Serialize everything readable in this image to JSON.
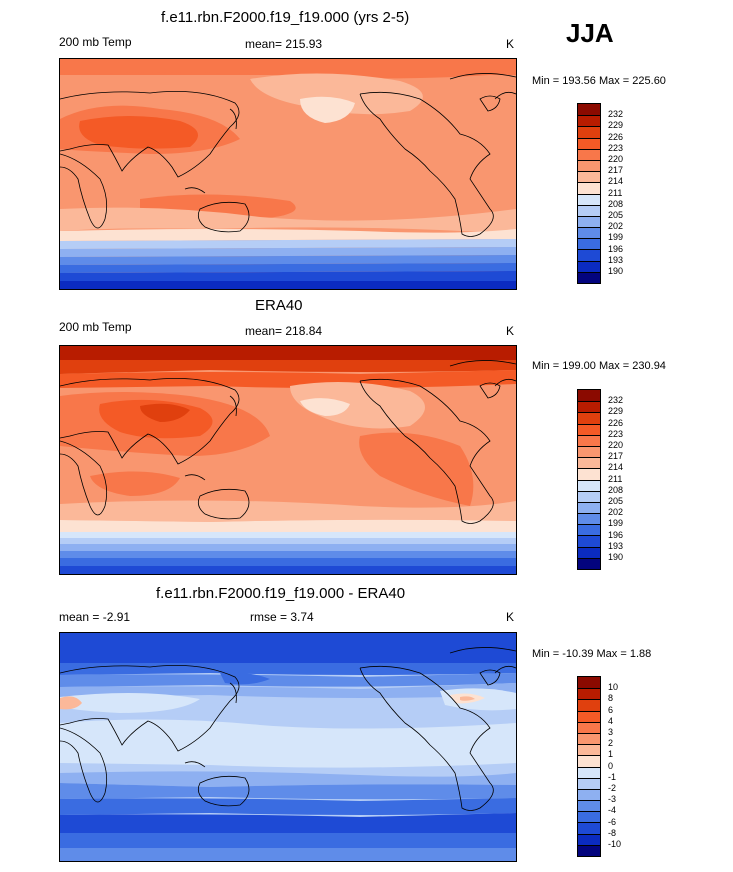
{
  "season": "JJA",
  "panels": [
    {
      "title": "f.e11.rbn.F2000.f19_f19.000 (yrs 2-5)",
      "left_label": "200 mb Temp",
      "center_label": "mean= 215.93",
      "units": "K",
      "minmax": "Min = 193.56 Max = 225.60",
      "colorbar_labels": [
        "232",
        "229",
        "226",
        "223",
        "220",
        "217",
        "214",
        "211",
        "208",
        "205",
        "202",
        "199",
        "196",
        "193",
        "190"
      ],
      "colorbar_colors": [
        "#8b0a00",
        "#b81c00",
        "#e0400e",
        "#f45a26",
        "#f8774a",
        "#f9966f",
        "#fbb899",
        "#fde2d2",
        "#d6e6fa",
        "#b5cdf6",
        "#8eb0f1",
        "#5f8ce9",
        "#3a6ce1",
        "#1e4ad5",
        "#0b2bc0",
        "#03047e"
      ]
    },
    {
      "title": "ERA40",
      "left_label": "200 mb Temp",
      "center_label": "mean= 218.84",
      "units": "K",
      "minmax": "Min = 199.00 Max = 230.94",
      "colorbar_labels": [
        "232",
        "229",
        "226",
        "223",
        "220",
        "217",
        "214",
        "211",
        "208",
        "205",
        "202",
        "199",
        "196",
        "193",
        "190"
      ],
      "colorbar_colors": [
        "#8b0a00",
        "#b81c00",
        "#e0400e",
        "#f45a26",
        "#f8774a",
        "#f9966f",
        "#fbb899",
        "#fde2d2",
        "#d6e6fa",
        "#b5cdf6",
        "#8eb0f1",
        "#5f8ce9",
        "#3a6ce1",
        "#1e4ad5",
        "#0b2bc0",
        "#03047e"
      ]
    },
    {
      "title": "f.e11.rbn.F2000.f19_f19.000 - ERA40",
      "left_label": "mean =  -2.91",
      "center_label": "rmse =   3.74",
      "units": "K",
      "minmax": "Min = -10.39 Max =   1.88",
      "colorbar_labels": [
        "10",
        "8",
        "6",
        "4",
        "3",
        "2",
        "1",
        "0",
        "-1",
        "-2",
        "-3",
        "-4",
        "-6",
        "-8",
        "-10"
      ],
      "colorbar_colors": [
        "#8b0a00",
        "#b81c00",
        "#e0400e",
        "#f45a26",
        "#f8774a",
        "#f9966f",
        "#fbb899",
        "#fde2d2",
        "#d6e6fa",
        "#b5cdf6",
        "#8eb0f1",
        "#5f8ce9",
        "#3a6ce1",
        "#1e4ad5",
        "#0b2bc0",
        "#03047e"
      ]
    }
  ]
}
